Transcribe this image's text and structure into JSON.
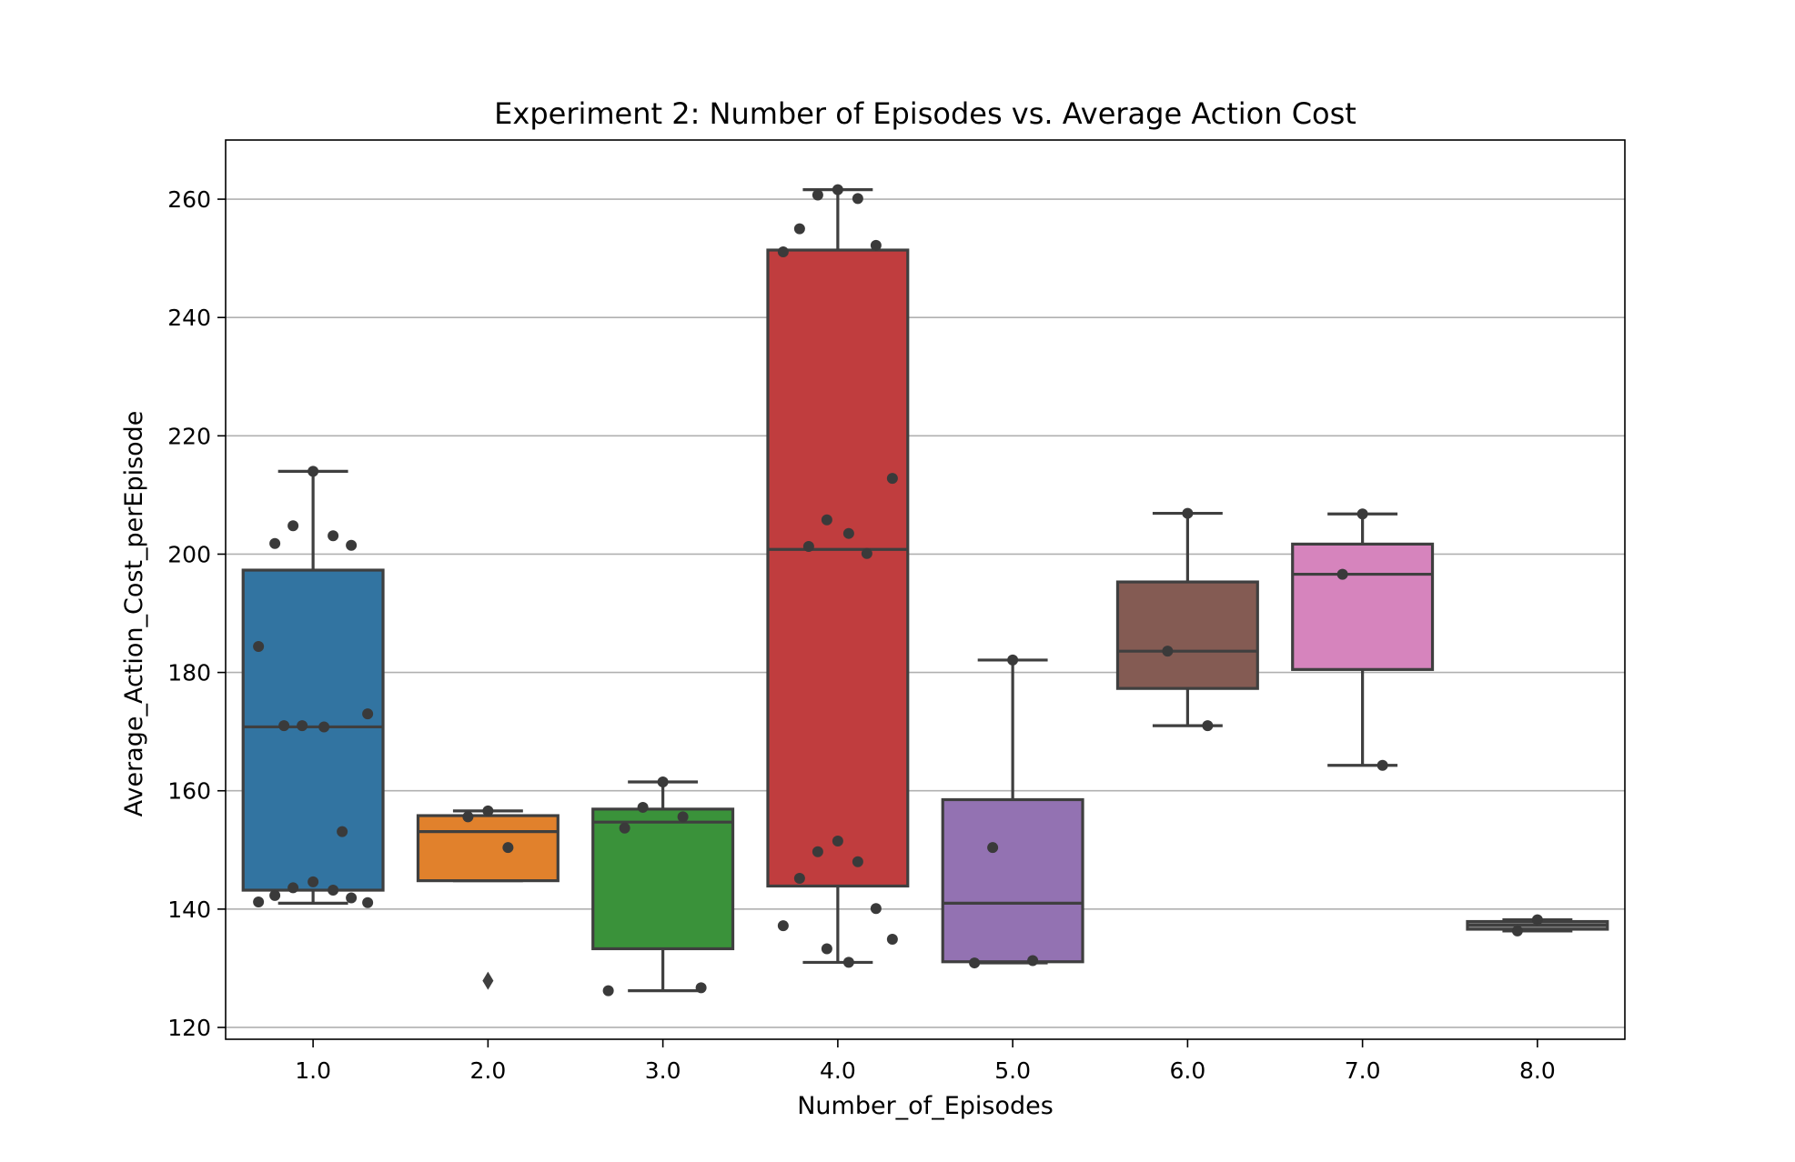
{
  "chart_data": {
    "type": "box",
    "title": "Experiment 2: Number of Episodes vs. Average Action Cost",
    "xlabel": "Number_of_Episodes",
    "ylabel": "Average_Action_Cost_perEpisode",
    "ylim": [
      118,
      270
    ],
    "yticks": [
      "120",
      "140",
      "160",
      "180",
      "200",
      "220",
      "240",
      "260"
    ],
    "grid": "horizontal",
    "legend": "none",
    "categories": [
      "1.0",
      "2.0",
      "3.0",
      "4.0",
      "5.0",
      "6.0",
      "7.0",
      "8.0"
    ],
    "series": [
      {
        "category": "1.0",
        "color": "#3274a1",
        "min": 141.0,
        "q1": 143.2,
        "median": 170.8,
        "q3": 197.3,
        "max": 214.0,
        "fliers": [],
        "points": [
          214.0,
          204.8,
          203.1,
          201.8,
          201.5,
          184.4,
          173.0,
          171.0,
          170.8,
          171.0,
          153.1,
          144.6,
          143.6,
          143.2,
          142.3,
          141.9,
          141.2,
          141.1
        ]
      },
      {
        "category": "2.0",
        "color": "#e1812c",
        "min": 144.8,
        "q1": 144.8,
        "median": 153.1,
        "q3": 155.8,
        "max": 156.6,
        "fliers": [
          127.9
        ],
        "points": [
          156.6,
          155.6,
          150.4
        ]
      },
      {
        "category": "3.0",
        "color": "#3a923a",
        "min": 126.2,
        "q1": 133.3,
        "median": 154.7,
        "q3": 156.9,
        "max": 161.5,
        "fliers": [],
        "points": [
          161.5,
          157.2,
          155.6,
          153.7,
          126.7,
          126.2
        ]
      },
      {
        "category": "4.0",
        "color": "#c03d3e",
        "min": 131.0,
        "q1": 143.9,
        "median": 200.8,
        "q3": 251.4,
        "max": 261.6,
        "fliers": [],
        "points": [
          261.6,
          260.7,
          260.1,
          255.0,
          252.2,
          251.1,
          212.8,
          205.8,
          203.5,
          201.3,
          200.1,
          151.5,
          149.7,
          148.0,
          145.2,
          140.1,
          137.2,
          134.9,
          133.3,
          131.0
        ]
      },
      {
        "category": "5.0",
        "color": "#9372b2",
        "min": 130.9,
        "q1": 131.1,
        "median": 141.0,
        "q3": 158.5,
        "max": 182.1,
        "fliers": [],
        "points": [
          182.1,
          150.4,
          131.3,
          130.9
        ]
      },
      {
        "category": "6.0",
        "color": "#845b53",
        "min": 171.0,
        "q1": 177.3,
        "median": 183.6,
        "q3": 195.3,
        "max": 206.9,
        "fliers": [],
        "points": [
          206.9,
          183.6,
          171.0
        ]
      },
      {
        "category": "7.0",
        "color": "#d684bd",
        "min": 164.3,
        "q1": 180.5,
        "median": 196.6,
        "q3": 201.7,
        "max": 206.8,
        "fliers": [],
        "points": [
          206.8,
          196.6,
          164.3
        ]
      },
      {
        "category": "8.0",
        "color": "#7f7f7f",
        "min": 136.3,
        "q1": 136.6,
        "median": 137.3,
        "q3": 137.9,
        "max": 138.2,
        "fliers": [],
        "points": [
          138.2,
          136.3
        ]
      }
    ]
  }
}
